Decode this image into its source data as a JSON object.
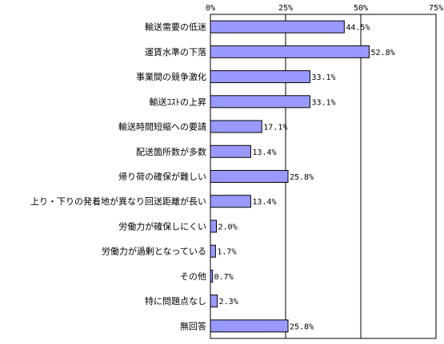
{
  "chart_data": {
    "type": "bar",
    "orientation": "horizontal",
    "categories": [
      "輸送需要の低迷",
      "運賃水準の下落",
      "事業間の競争激化",
      "輸送ｺｽﾄの上昇",
      "輸送時間短縮への要請",
      "配送箇所数が多数",
      "帰り荷の確保が難しい",
      "上り・下りの発着地が異なり回送距離が長い",
      "労働力が確保しにくい",
      "労働力が過剰となっている",
      "その他",
      "特に問題点なし",
      "無回答"
    ],
    "values": [
      44.5,
      52.8,
      33.1,
      33.1,
      17.1,
      13.4,
      25.8,
      13.4,
      2.0,
      1.7,
      0.7,
      2.3,
      25.8
    ],
    "value_labels": [
      "44.5%",
      "52.8%",
      "33.1%",
      "33.1%",
      "17.1%",
      "13.4%",
      "25.8%",
      "13.4%",
      "2.0%",
      "1.7%",
      "0.7%",
      "2.3%",
      "25.8%"
    ],
    "xlim": [
      0,
      75
    ],
    "xticks": [
      0,
      25,
      50,
      75
    ],
    "xtick_labels": [
      "0%",
      "25%",
      "50%",
      "75%"
    ],
    "grid": true,
    "bar_color": "#9999ff",
    "bar_edge_color": "#000000"
  }
}
